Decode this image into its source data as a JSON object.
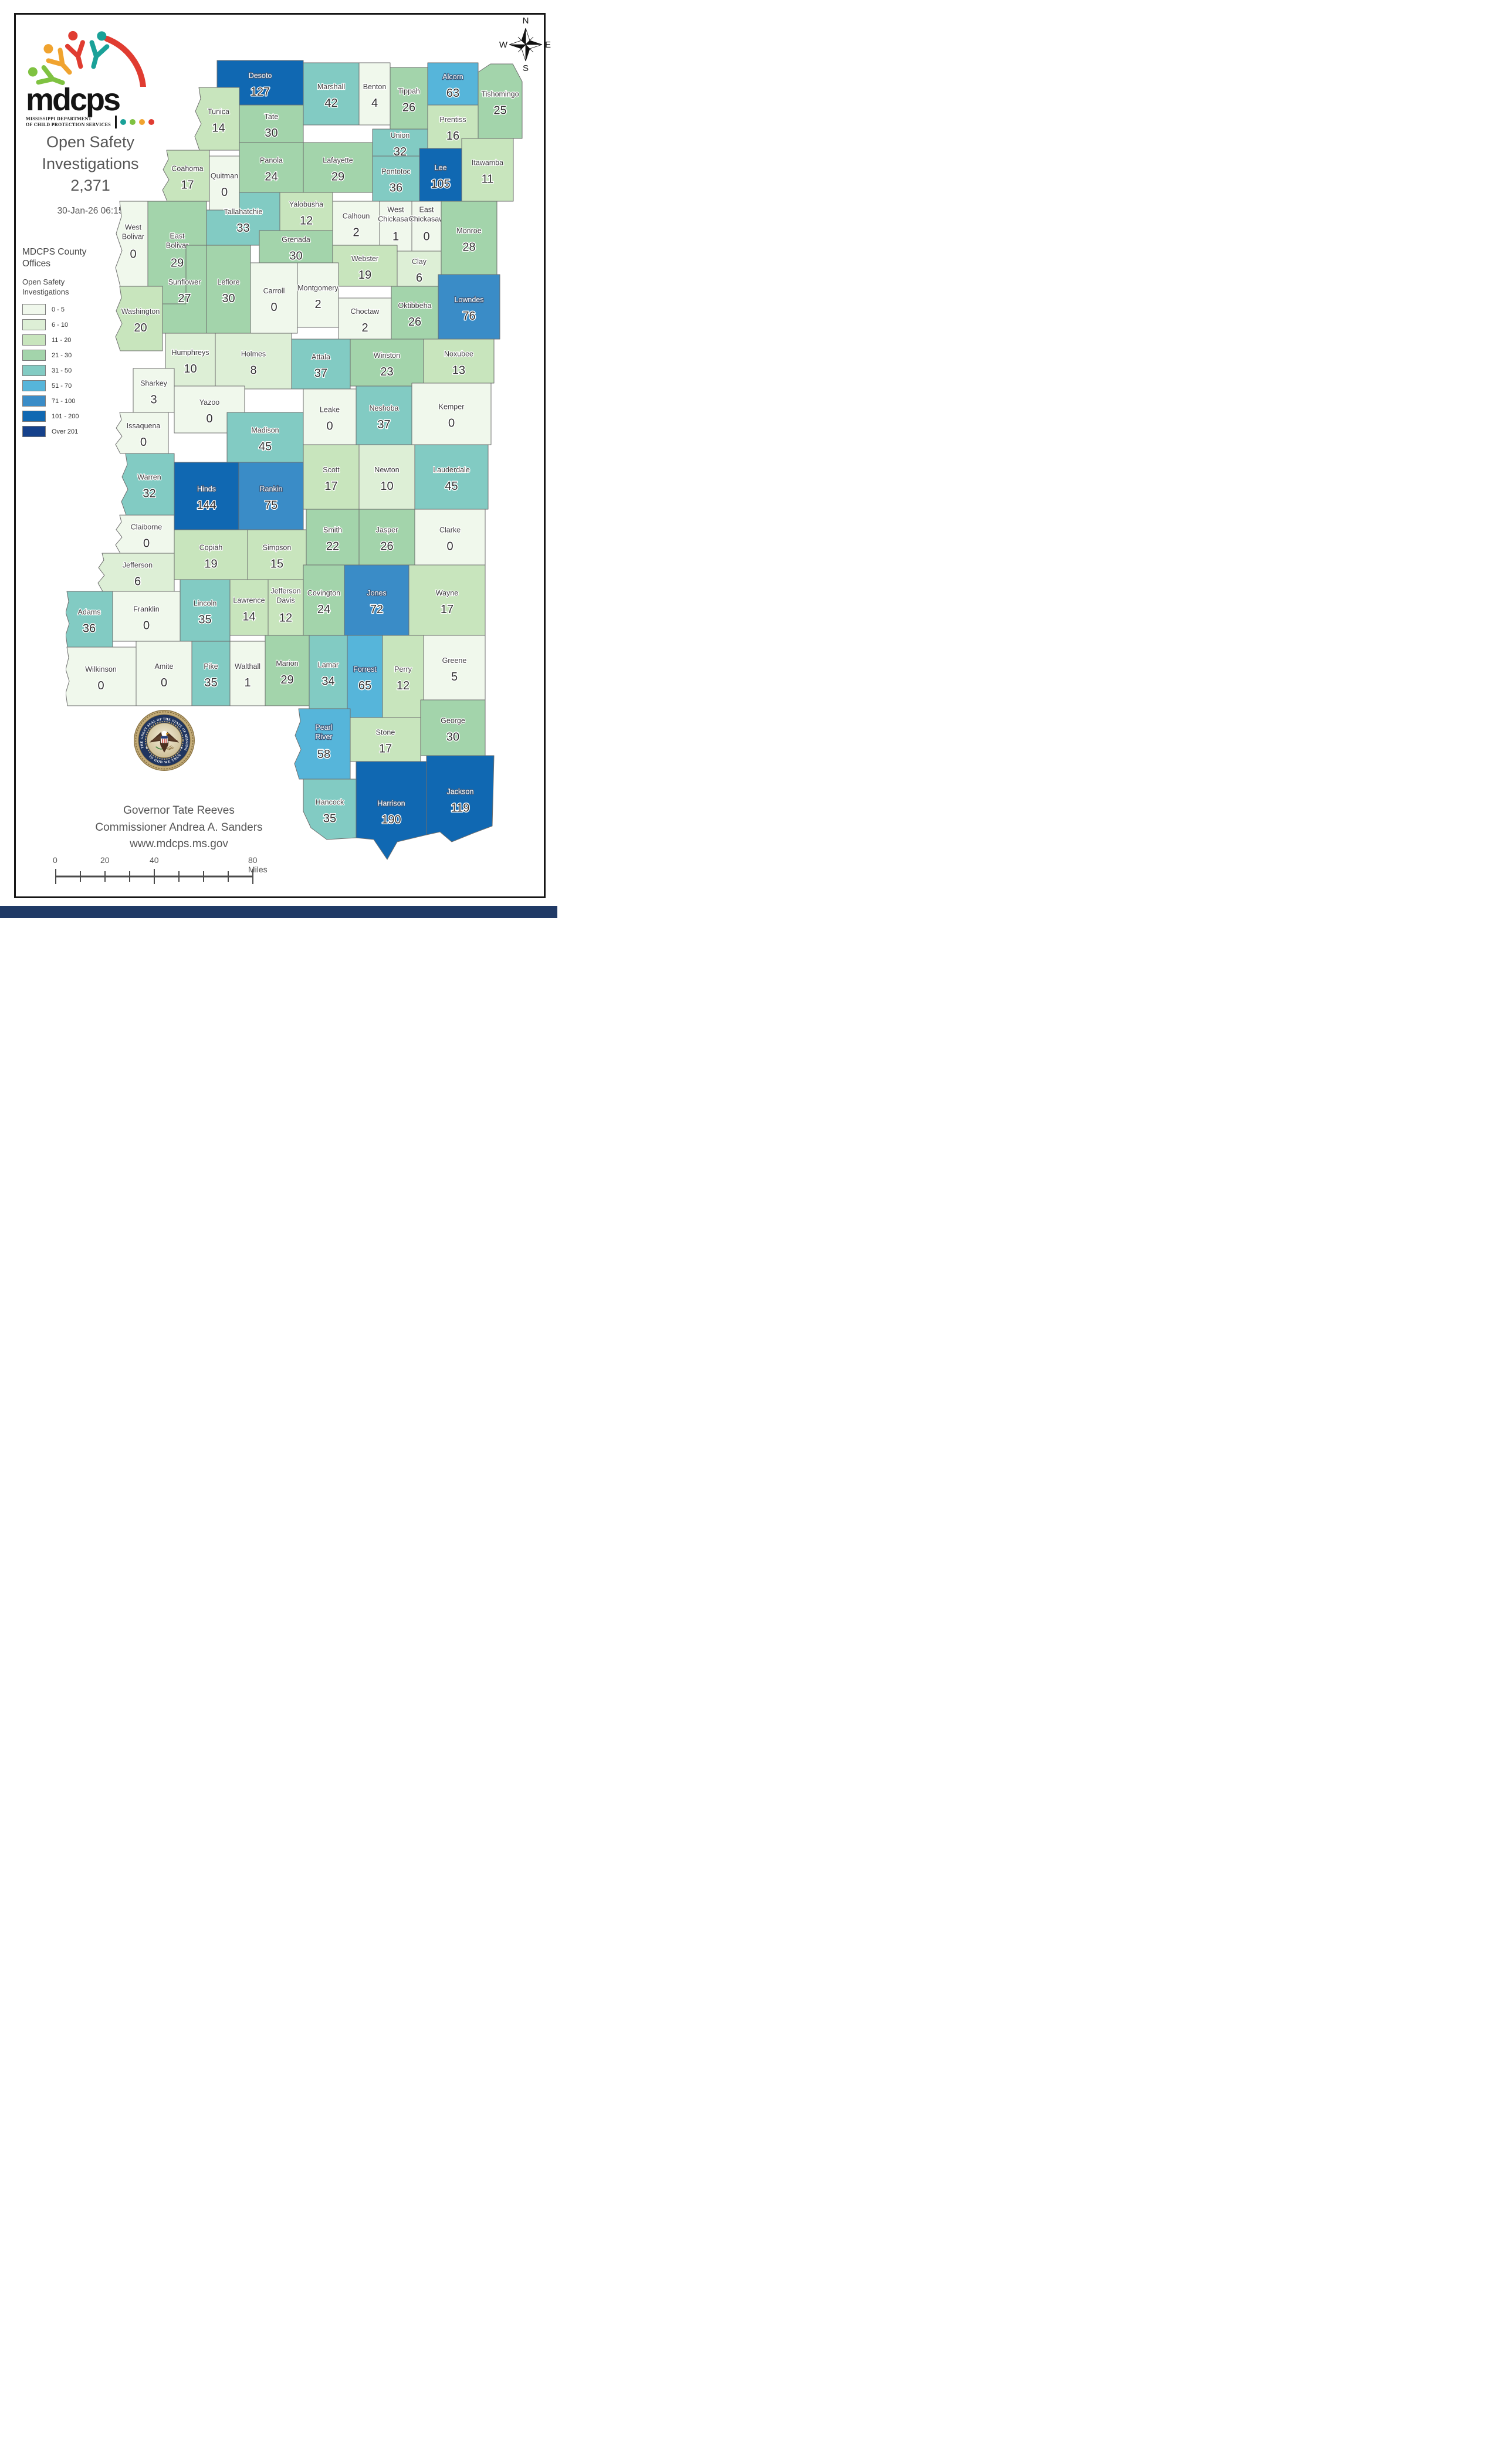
{
  "logo": {
    "word": "mdcps",
    "tagline_line1": "MISSISSIPPI DEPARTMENT",
    "tagline_line2": "OF CHILD PROTECTION SERVICES",
    "dot_colors": [
      "#1aa198",
      "#7fc241",
      "#f0a32f",
      "#e03c31"
    ]
  },
  "header": {
    "title_line1": "Open Safety",
    "title_line2": "Investigations",
    "total": "2,371",
    "timestamp": "30-Jan-26 06:15"
  },
  "compass": {
    "north": "N",
    "east": "E",
    "south": "S",
    "west": "W"
  },
  "legend": {
    "offices_title": "MDCPS County Offices",
    "map_title": "Open Safety Investigations",
    "classes": [
      {
        "label": "0 - 5",
        "color": "#f0f8ec"
      },
      {
        "label": "6 - 10",
        "color": "#ddefd6"
      },
      {
        "label": "11 - 20",
        "color": "#c8e5bd"
      },
      {
        "label": "21 - 30",
        "color": "#a3d4ab"
      },
      {
        "label": "31 - 50",
        "color": "#82cbc3"
      },
      {
        "label": "51 - 70",
        "color": "#56b5da"
      },
      {
        "label": "71 - 100",
        "color": "#3a8cc7"
      },
      {
        "label": "101 - 200",
        "color": "#1068b2"
      },
      {
        "label": "Over 201",
        "color": "#15418b"
      }
    ]
  },
  "map": {
    "border_color": "#6e6e6e",
    "counties": [
      {
        "id": "desoto",
        "name": "Desoto",
        "value": 127,
        "bucket": 7
      },
      {
        "id": "marshall",
        "name": "Marshall",
        "value": 42,
        "bucket": 4
      },
      {
        "id": "benton",
        "name": "Benton",
        "value": 4,
        "bucket": 0
      },
      {
        "id": "tippah",
        "name": "Tippah",
        "value": 26,
        "bucket": 3
      },
      {
        "id": "alcorn",
        "name": "Alcorn",
        "value": 63,
        "bucket": 5
      },
      {
        "id": "tishomingo",
        "name": "Tishomingo",
        "value": 25,
        "bucket": 3
      },
      {
        "id": "tunica",
        "name": "Tunica",
        "value": 14,
        "bucket": 2
      },
      {
        "id": "tate",
        "name": "Tate",
        "value": 30,
        "bucket": 3
      },
      {
        "id": "prentiss",
        "name": "Prentiss",
        "value": 16,
        "bucket": 2
      },
      {
        "id": "union",
        "name": "Union",
        "value": 32,
        "bucket": 4
      },
      {
        "id": "panola",
        "name": "Panola",
        "value": 24,
        "bucket": 3
      },
      {
        "id": "lafayette",
        "name": "Lafayette",
        "value": 29,
        "bucket": 3
      },
      {
        "id": "pontotoc",
        "name": "Pontotoc",
        "value": 36,
        "bucket": 4
      },
      {
        "id": "lee",
        "name": "Lee",
        "value": 105,
        "bucket": 7
      },
      {
        "id": "itawamba",
        "name": "Itawamba",
        "value": 11,
        "bucket": 2
      },
      {
        "id": "coahoma",
        "name": "Coahoma",
        "value": 17,
        "bucket": 2
      },
      {
        "id": "quitman",
        "name": "Quitman",
        "value": 0,
        "bucket": 0
      },
      {
        "id": "tallahatchie",
        "name": "Tallahatchie",
        "value": 33,
        "bucket": 4
      },
      {
        "id": "yalobusha",
        "name": "Yalobusha",
        "value": 12,
        "bucket": 2
      },
      {
        "id": "calhoun",
        "name": "Calhoun",
        "value": 2,
        "bucket": 0
      },
      {
        "id": "chickasaw_w",
        "name": "West Chickasaw",
        "value": 1,
        "bucket": 0
      },
      {
        "id": "chickasaw_e",
        "name": "East Chickasaw",
        "value": 0,
        "bucket": 0
      },
      {
        "id": "monroe",
        "name": "Monroe",
        "value": 28,
        "bucket": 3
      },
      {
        "id": "grenada",
        "name": "Grenada",
        "value": 30,
        "bucket": 3
      },
      {
        "id": "bolivar_w",
        "name": "West Bolivar",
        "value": 0,
        "bucket": 0
      },
      {
        "id": "bolivar_e",
        "name": "East Bolivar",
        "value": 29,
        "bucket": 3
      },
      {
        "id": "sunflower",
        "name": "Sunflower",
        "value": 27,
        "bucket": 3
      },
      {
        "id": "leflore",
        "name": "Leflore",
        "value": 30,
        "bucket": 3
      },
      {
        "id": "webster",
        "name": "Webster",
        "value": 19,
        "bucket": 2
      },
      {
        "id": "clay",
        "name": "Clay",
        "value": 6,
        "bucket": 1
      },
      {
        "id": "carroll",
        "name": "Carroll",
        "value": 0,
        "bucket": 0
      },
      {
        "id": "montgomery",
        "name": "Montgomery",
        "value": 2,
        "bucket": 0
      },
      {
        "id": "choctaw",
        "name": "Choctaw",
        "value": 2,
        "bucket": 0
      },
      {
        "id": "oktibbeha",
        "name": "Oktibbeha",
        "value": 26,
        "bucket": 3
      },
      {
        "id": "lowndes",
        "name": "Lowndes",
        "value": 76,
        "bucket": 6
      },
      {
        "id": "washington",
        "name": "Washington",
        "value": 20,
        "bucket": 2
      },
      {
        "id": "humphreys",
        "name": "Humphreys",
        "value": 10,
        "bucket": 1
      },
      {
        "id": "holmes",
        "name": "Holmes",
        "value": 8,
        "bucket": 1
      },
      {
        "id": "attala",
        "name": "Attala",
        "value": 37,
        "bucket": 4
      },
      {
        "id": "winston",
        "name": "Winston",
        "value": 23,
        "bucket": 3
      },
      {
        "id": "noxubee",
        "name": "Noxubee",
        "value": 13,
        "bucket": 2
      },
      {
        "id": "sharkey",
        "name": "Sharkey",
        "value": 3,
        "bucket": 0
      },
      {
        "id": "yazoo",
        "name": "Yazoo",
        "value": 0,
        "bucket": 0
      },
      {
        "id": "leake",
        "name": "Leake",
        "value": 0,
        "bucket": 0
      },
      {
        "id": "neshoba",
        "name": "Neshoba",
        "value": 37,
        "bucket": 4
      },
      {
        "id": "kemper",
        "name": "Kemper",
        "value": 0,
        "bucket": 0
      },
      {
        "id": "issaquena",
        "name": "Issaquena",
        "value": 0,
        "bucket": 0
      },
      {
        "id": "madison",
        "name": "Madison",
        "value": 45,
        "bucket": 4
      },
      {
        "id": "warren",
        "name": "Warren",
        "value": 32,
        "bucket": 4
      },
      {
        "id": "hinds",
        "name": "Hinds",
        "value": 144,
        "bucket": 7
      },
      {
        "id": "rankin",
        "name": "Rankin",
        "value": 75,
        "bucket": 6
      },
      {
        "id": "scott",
        "name": "Scott",
        "value": 17,
        "bucket": 2
      },
      {
        "id": "newton",
        "name": "Newton",
        "value": 10,
        "bucket": 1
      },
      {
        "id": "lauderdale",
        "name": "Lauderdale",
        "value": 45,
        "bucket": 4
      },
      {
        "id": "claiborne",
        "name": "Claiborne",
        "value": 0,
        "bucket": 0
      },
      {
        "id": "copiah",
        "name": "Copiah",
        "value": 19,
        "bucket": 2
      },
      {
        "id": "simpson",
        "name": "Simpson",
        "value": 15,
        "bucket": 2
      },
      {
        "id": "smith",
        "name": "Smith",
        "value": 22,
        "bucket": 3
      },
      {
        "id": "jasper",
        "name": "Jasper",
        "value": 26,
        "bucket": 3
      },
      {
        "id": "clarke",
        "name": "Clarke",
        "value": 0,
        "bucket": 0
      },
      {
        "id": "jefferson",
        "name": "Jefferson",
        "value": 6,
        "bucket": 1
      },
      {
        "id": "franklin",
        "name": "Franklin",
        "value": 0,
        "bucket": 0
      },
      {
        "id": "lincoln",
        "name": "Lincoln",
        "value": 35,
        "bucket": 4
      },
      {
        "id": "lawrence",
        "name": "Lawrence",
        "value": 14,
        "bucket": 2
      },
      {
        "id": "jeffdavis",
        "name": "Jefferson Davis",
        "value": 12,
        "bucket": 2
      },
      {
        "id": "covington",
        "name": "Covington",
        "value": 24,
        "bucket": 3
      },
      {
        "id": "jones",
        "name": "Jones",
        "value": 72,
        "bucket": 6
      },
      {
        "id": "wayne",
        "name": "Wayne",
        "value": 17,
        "bucket": 2
      },
      {
        "id": "adams",
        "name": "Adams",
        "value": 36,
        "bucket": 4
      },
      {
        "id": "wilkinson",
        "name": "Wilkinson",
        "value": 0,
        "bucket": 0
      },
      {
        "id": "amite",
        "name": "Amite",
        "value": 0,
        "bucket": 0
      },
      {
        "id": "pike",
        "name": "Pike",
        "value": 35,
        "bucket": 4
      },
      {
        "id": "walthall",
        "name": "Walthall",
        "value": 1,
        "bucket": 0
      },
      {
        "id": "marion",
        "name": "Marion",
        "value": 29,
        "bucket": 3
      },
      {
        "id": "lamar",
        "name": "Lamar",
        "value": 34,
        "bucket": 4
      },
      {
        "id": "forrest",
        "name": "Forrest",
        "value": 65,
        "bucket": 5
      },
      {
        "id": "perry",
        "name": "Perry",
        "value": 12,
        "bucket": 2
      },
      {
        "id": "greene",
        "name": "Greene",
        "value": 5,
        "bucket": 0
      },
      {
        "id": "pearlriver",
        "name": "Pearl River",
        "value": 58,
        "bucket": 5
      },
      {
        "id": "stone",
        "name": "Stone",
        "value": 17,
        "bucket": 2
      },
      {
        "id": "george",
        "name": "George",
        "value": 30,
        "bucket": 3
      },
      {
        "id": "hancock",
        "name": "Hancock",
        "value": 35,
        "bucket": 4
      },
      {
        "id": "harrison",
        "name": "Harrison",
        "value": 190,
        "bucket": 7
      },
      {
        "id": "jackson",
        "name": "Jackson",
        "value": 119,
        "bucket": 7
      }
    ]
  },
  "seal": {
    "ring_text": "THE GREAT SEAL OF THE STATE OF MISSISSIPPI",
    "banner_text": "IN GOD WE TRUST",
    "star": "★"
  },
  "footer": {
    "line1": "Governor Tate Reeves",
    "line2": "Commissioner Andrea A. Sanders",
    "line3": "www.mdcps.ms.gov"
  },
  "scalebar": {
    "label_0": "0",
    "label_20": "20",
    "label_40": "40",
    "label_80": "80 Miles"
  }
}
